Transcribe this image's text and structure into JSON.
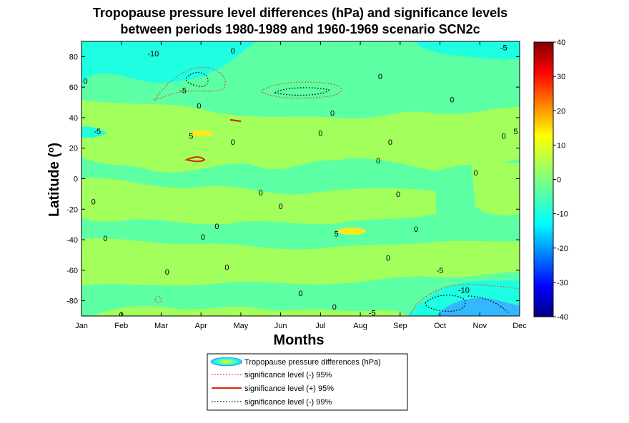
{
  "chart_data": {
    "type": "contour",
    "title_lines": [
      "Tropopause pressure level differences (hPa) and significance levels",
      "between periods 1980-1989 and 1960-1969 scenario SCN2c"
    ],
    "xlabel": "Months",
    "ylabel": "Latitude (°)",
    "ylabel_text": "Latitude (",
    "ylabel_sup": "o",
    "ylabel_close": ")",
    "x_ticks": [
      "Jan",
      "Feb",
      "Mar",
      "Apr",
      "May",
      "Jun",
      "Jul",
      "Aug",
      "Sep",
      "Oct",
      "Nov",
      "Dec"
    ],
    "x_range": [
      1,
      12
    ],
    "y_range": [
      -90,
      90
    ],
    "y_ticks": [
      80,
      60,
      40,
      20,
      0,
      -20,
      -40,
      -60,
      -80
    ],
    "colorbar": {
      "range": [
        -40,
        40
      ],
      "ticks": [
        40,
        30,
        20,
        10,
        0,
        -10,
        -20,
        -30,
        -40
      ],
      "colormap": "jet"
    },
    "colors": {
      "background_zero": "#5cffa3",
      "light_green": "#a3ff5c",
      "cyan": "#1effe1",
      "blue_light": "#33b8ff",
      "yellow": "#ffe61e",
      "sig_neg95": "#e0501e",
      "sig_pos95": "#d42c0a",
      "sig_neg99": "#000000"
    },
    "contour_labels": [
      {
        "text": "-10",
        "x": 2.8,
        "y": 82
      },
      {
        "text": "0",
        "x": 4.8,
        "y": 84
      },
      {
        "text": "-5",
        "x": 11.6,
        "y": 86
      },
      {
        "text": "0",
        "x": 1.1,
        "y": 64
      },
      {
        "text": "-5",
        "x": 3.55,
        "y": 58
      },
      {
        "text": "0",
        "x": 8.5,
        "y": 67
      },
      {
        "text": "0",
        "x": 3.95,
        "y": 48
      },
      {
        "text": "0",
        "x": 10.3,
        "y": 52
      },
      {
        "text": "0",
        "x": 7.3,
        "y": 43
      },
      {
        "text": "-5",
        "x": 1.4,
        "y": 31
      },
      {
        "text": "5",
        "x": 3.75,
        "y": 28
      },
      {
        "text": "0",
        "x": 4.8,
        "y": 24
      },
      {
        "text": "0",
        "x": 7.0,
        "y": 30
      },
      {
        "text": "0",
        "x": 8.75,
        "y": 24
      },
      {
        "text": "0",
        "x": 11.6,
        "y": 28
      },
      {
        "text": "5",
        "x": 11.9,
        "y": 31
      },
      {
        "text": "0",
        "x": 8.45,
        "y": 12
      },
      {
        "text": "0",
        "x": 10.9,
        "y": 4
      },
      {
        "text": "0",
        "x": 5.5,
        "y": -9
      },
      {
        "text": "0",
        "x": 8.95,
        "y": -10
      },
      {
        "text": "0",
        "x": 1.3,
        "y": -15
      },
      {
        "text": "0",
        "x": 6.0,
        "y": -18
      },
      {
        "text": "0",
        "x": 4.4,
        "y": -31
      },
      {
        "text": "5",
        "x": 7.4,
        "y": -36
      },
      {
        "text": "0",
        "x": 9.4,
        "y": -33
      },
      {
        "text": "0",
        "x": 1.6,
        "y": -39
      },
      {
        "text": "0",
        "x": 4.05,
        "y": -38
      },
      {
        "text": "0",
        "x": 8.7,
        "y": -52
      },
      {
        "text": "0",
        "x": 4.65,
        "y": -58
      },
      {
        "text": "0",
        "x": 3.15,
        "y": -61
      },
      {
        "text": "-5",
        "x": 10.0,
        "y": -60
      },
      {
        "text": "-10",
        "x": 10.6,
        "y": -73
      },
      {
        "text": "0",
        "x": 6.5,
        "y": -75
      },
      {
        "text": "0",
        "x": 7.35,
        "y": -84
      },
      {
        "text": "-5",
        "x": 8.3,
        "y": -88
      },
      {
        "text": "0",
        "x": 2.0,
        "y": -89
      }
    ],
    "legend": [
      {
        "label": "Tropopause pressure differences (hPa)",
        "style": "fill"
      },
      {
        "label": "significance level (-) 95%",
        "style": "dotted-orange"
      },
      {
        "label": "significance level (+) 95%",
        "style": "solid-red"
      },
      {
        "label": "significance level (-) 99%",
        "style": "dotted-black"
      }
    ]
  }
}
